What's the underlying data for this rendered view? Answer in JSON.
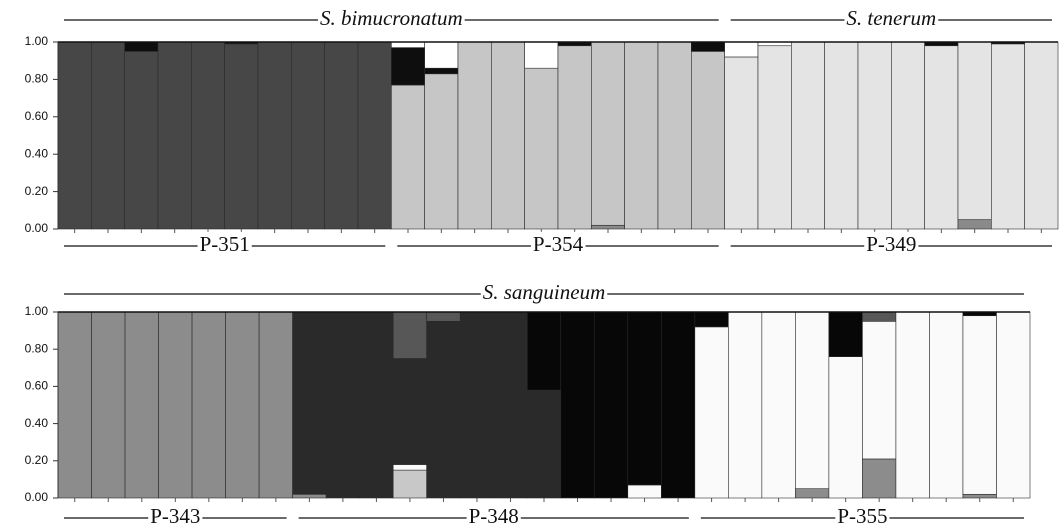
{
  "chart_data": [
    {
      "type": "stacked_bar",
      "species_labels": [
        "S. bimucronatum",
        "S. tenerum"
      ],
      "population_labels": [
        "P-351",
        "P-354",
        "P-349"
      ],
      "categories": [
        null,
        null,
        null,
        null,
        null,
        null,
        null,
        null,
        null,
        null,
        null,
        null,
        null,
        null,
        null,
        null,
        null,
        null,
        null,
        null,
        null,
        null,
        null,
        null,
        null,
        null,
        null,
        null,
        null,
        null
      ],
      "ylim": [
        0,
        1
      ],
      "yticks": [
        {
          "value": 0,
          "label": "0.00"
        },
        {
          "value": 0.2,
          "label": "0.20"
        },
        {
          "value": 0.4,
          "label": "0.40"
        },
        {
          "value": 0.6,
          "label": "0.60"
        },
        {
          "value": 0.8,
          "label": "0.80"
        },
        {
          "value": 1,
          "label": "1.00"
        }
      ],
      "series": [
        {
          "color": "#8a8a8a",
          "values": [
            0,
            0,
            0,
            0,
            0,
            0,
            0,
            0,
            0,
            0,
            0,
            0,
            0,
            0,
            0,
            0,
            0.02,
            0,
            0,
            0,
            0,
            0,
            0,
            0,
            0,
            0,
            0,
            0.05,
            0,
            0
          ]
        },
        {
          "color": "#c6c6c6",
          "values": [
            0,
            0,
            0,
            0,
            0,
            0,
            0,
            0,
            0,
            0,
            0.77,
            0.83,
            1,
            1,
            0.86,
            0.98,
            0.98,
            1,
            1,
            0.95,
            0,
            0,
            0,
            0,
            0,
            0,
            0,
            0,
            0,
            0
          ]
        },
        {
          "color": "#e4e4e4",
          "values": [
            0,
            0,
            0,
            0,
            0,
            0,
            0,
            0,
            0,
            0,
            0,
            0,
            0,
            0,
            0,
            0,
            0,
            0,
            0,
            0,
            0.92,
            0.98,
            1,
            1,
            1,
            1,
            0.98,
            0.95,
            0.99,
            1
          ]
        },
        {
          "color": "#474747",
          "values": [
            1,
            1,
            0.95,
            1,
            1,
            0.99,
            1,
            1,
            1,
            1,
            0,
            0,
            0,
            0,
            0,
            0,
            0,
            0,
            0,
            0,
            0,
            0,
            0,
            0,
            0,
            0,
            0,
            0,
            0,
            0
          ]
        },
        {
          "color": "#0e0e0e",
          "values": [
            0,
            0,
            0.05,
            0,
            0,
            0.01,
            0,
            0,
            0,
            0,
            0.2,
            0.03,
            0,
            0,
            0,
            0.02,
            0,
            0,
            0,
            0.05,
            0,
            0,
            0,
            0,
            0,
            0,
            0.02,
            0,
            0.01,
            0
          ]
        },
        {
          "color": "#ffffff",
          "values": [
            0,
            0,
            0,
            0,
            0,
            0,
            0,
            0,
            0,
            0,
            0.03,
            0.14,
            0,
            0,
            0.14,
            0,
            0,
            0,
            0,
            0,
            0.08,
            0.02,
            0,
            0,
            0,
            0,
            0,
            0,
            0,
            0
          ]
        }
      ]
    },
    {
      "type": "stacked_bar",
      "species_labels": [
        "S. sanguineum"
      ],
      "population_labels": [
        "P-343",
        "P-348",
        "P-355"
      ],
      "categories": [
        null,
        null,
        null,
        null,
        null,
        null,
        null,
        null,
        null,
        null,
        null,
        null,
        null,
        null,
        null,
        null,
        null,
        null,
        null,
        null,
        null,
        null,
        null,
        null,
        null,
        null,
        null,
        null,
        null
      ],
      "ylim": [
        0,
        1
      ],
      "yticks": [
        {
          "value": 0,
          "label": "0.00"
        },
        {
          "value": 0.2,
          "label": "0.20"
        },
        {
          "value": 0.4,
          "label": "0.40"
        },
        {
          "value": 0.6,
          "label": "0.60"
        },
        {
          "value": 0.8,
          "label": "0.80"
        },
        {
          "value": 1,
          "label": "1.00"
        }
      ],
      "series": [
        {
          "color": "#c8c8c8",
          "values": [
            0,
            0,
            0,
            0,
            0,
            0,
            0,
            0,
            0,
            0,
            0.15,
            0,
            0,
            0,
            0,
            0,
            0,
            0,
            0,
            0,
            0,
            0,
            0,
            0,
            0,
            0,
            0,
            0,
            0
          ]
        },
        {
          "color": "#8c8c8c",
          "values": [
            1,
            1,
            1,
            1,
            1,
            1,
            1,
            0.02,
            0,
            0,
            0,
            0,
            0,
            0,
            0,
            0,
            0,
            0,
            0,
            0,
            0,
            0,
            0.05,
            0,
            0.21,
            0,
            0,
            0.02,
            0
          ]
        },
        {
          "color": "#fafafa",
          "values": [
            0,
            0,
            0,
            0,
            0,
            0,
            0,
            0,
            0,
            0,
            0.03,
            0,
            0,
            0,
            0,
            0,
            0,
            0.07,
            0,
            0.92,
            1,
            1,
            0.95,
            0.76,
            0.74,
            1,
            1,
            0.96,
            1
          ]
        },
        {
          "color": "#2a2a2a",
          "values": [
            0,
            0,
            0,
            0,
            0,
            0,
            0,
            0.98,
            1,
            1,
            0.57,
            0.95,
            1,
            1,
            0.58,
            0,
            0,
            0,
            0,
            0,
            0,
            0,
            0,
            0,
            0,
            0,
            0,
            0,
            0
          ]
        },
        {
          "color": "#070707",
          "values": [
            0,
            0,
            0,
            0,
            0,
            0,
            0,
            0,
            0,
            0,
            0,
            0,
            0,
            0,
            0.42,
            1,
            1,
            0.93,
            1,
            0.08,
            0,
            0,
            0,
            0.24,
            0,
            0,
            0,
            0.02,
            0
          ]
        },
        {
          "color": "#575757",
          "values": [
            0,
            0,
            0,
            0,
            0,
            0,
            0,
            0,
            0,
            0,
            0.25,
            0.05,
            0,
            0,
            0,
            0,
            0,
            0,
            0,
            0,
            0,
            0,
            0,
            0,
            0.05,
            0,
            0,
            0,
            0
          ]
        }
      ]
    }
  ]
}
